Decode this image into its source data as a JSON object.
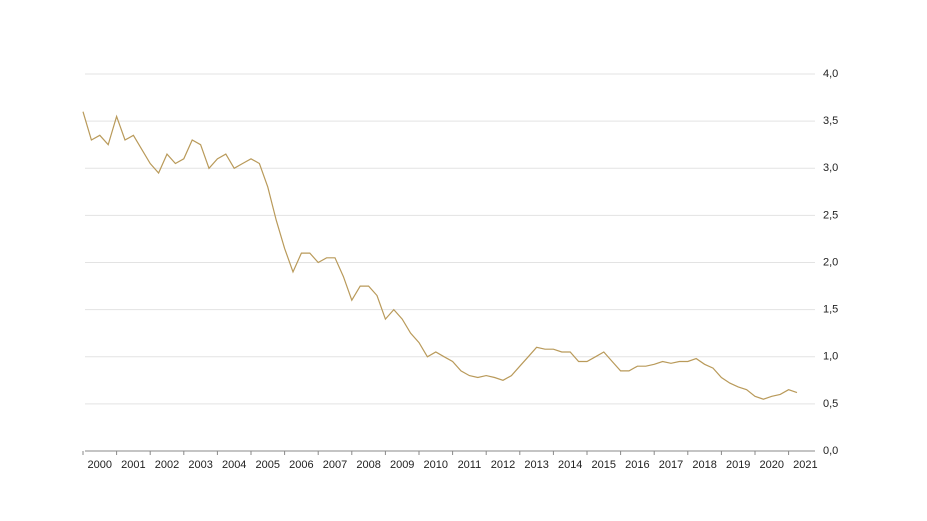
{
  "chart_data": {
    "type": "line",
    "x": [
      2000.0,
      2000.25,
      2000.5,
      2000.75,
      2001.0,
      2001.25,
      2001.5,
      2001.75,
      2002.0,
      2002.25,
      2002.5,
      2002.75,
      2003.0,
      2003.25,
      2003.5,
      2003.75,
      2004.0,
      2004.25,
      2004.5,
      2004.75,
      2005.0,
      2005.25,
      2005.5,
      2005.75,
      2006.0,
      2006.25,
      2006.5,
      2006.75,
      2007.0,
      2007.25,
      2007.5,
      2007.75,
      2008.0,
      2008.25,
      2008.5,
      2008.75,
      2009.0,
      2009.25,
      2009.5,
      2009.75,
      2010.0,
      2010.25,
      2010.5,
      2010.75,
      2011.0,
      2011.25,
      2011.5,
      2011.75,
      2012.0,
      2012.25,
      2012.5,
      2012.75,
      2013.0,
      2013.25,
      2013.5,
      2013.75,
      2014.0,
      2014.25,
      2014.5,
      2014.75,
      2015.0,
      2015.25,
      2015.5,
      2015.75,
      2016.0,
      2016.25,
      2016.5,
      2016.75,
      2017.0,
      2017.25,
      2017.5,
      2017.75,
      2018.0,
      2018.25,
      2018.5,
      2018.75,
      2019.0,
      2019.25,
      2019.5,
      2019.75,
      2020.0,
      2020.25,
      2020.5,
      2020.75,
      2021.0,
      2021.25
    ],
    "series": [
      {
        "color": "#b99a5a",
        "values": [
          3.6,
          3.3,
          3.35,
          3.25,
          3.55,
          3.3,
          3.35,
          3.2,
          3.05,
          2.95,
          3.15,
          3.05,
          3.1,
          3.3,
          3.25,
          3.0,
          3.1,
          3.15,
          3.0,
          3.05,
          3.1,
          3.05,
          2.8,
          2.45,
          2.15,
          1.9,
          2.1,
          2.1,
          2.0,
          2.05,
          2.05,
          1.85,
          1.6,
          1.75,
          1.75,
          1.65,
          1.4,
          1.5,
          1.4,
          1.25,
          1.15,
          1.0,
          1.05,
          1.0,
          0.95,
          0.85,
          0.8,
          0.78,
          0.8,
          0.78,
          0.75,
          0.8,
          0.9,
          1.0,
          1.1,
          1.08,
          1.08,
          1.05,
          1.05,
          0.95,
          0.95,
          1.0,
          1.05,
          0.95,
          0.85,
          0.85,
          0.9,
          0.9,
          0.92,
          0.95,
          0.93,
          0.95,
          0.95,
          0.98,
          0.92,
          0.88,
          0.78,
          0.72,
          0.68,
          0.65,
          0.58,
          0.55,
          0.58,
          0.6,
          0.65,
          0.62
        ]
      }
    ],
    "xlim": [
      2000,
      2021.3
    ],
    "xticks": [
      2000,
      2001,
      2002,
      2003,
      2004,
      2005,
      2006,
      2007,
      2008,
      2009,
      2010,
      2011,
      2012,
      2013,
      2014,
      2015,
      2016,
      2017,
      2018,
      2019,
      2020,
      2021
    ],
    "ylim": [
      0,
      4
    ],
    "yticks": [
      {
        "value": 0,
        "label": "0,0"
      },
      {
        "value": 0.5,
        "label": "0,5"
      },
      {
        "value": 1,
        "label": "1,0"
      },
      {
        "value": 1.5,
        "label": "1,5"
      },
      {
        "value": 2,
        "label": "2,0"
      },
      {
        "value": 2.5,
        "label": "2,5"
      },
      {
        "value": 3,
        "label": "3,0"
      },
      {
        "value": 3.5,
        "label": "3,5"
      },
      {
        "value": 4,
        "label": "4,0"
      }
    ],
    "grid": true
  }
}
